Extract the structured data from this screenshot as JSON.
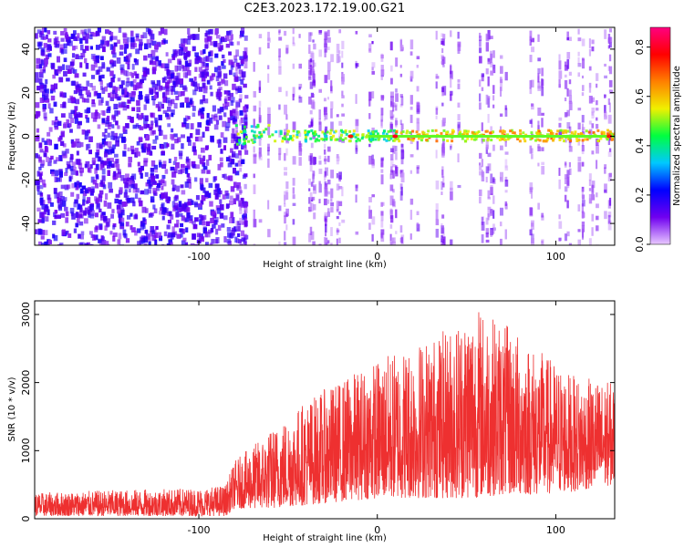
{
  "title": "C2E3.2023.172.19.00.G21",
  "chart_data": [
    {
      "type": "heatmap",
      "xlabel": "Height of straight line (km)",
      "ylabel": "Frequency (Hz)",
      "xlim": [
        -192,
        133
      ],
      "ylim": [
        -50,
        50
      ],
      "xticks": [
        -100,
        0,
        100
      ],
      "yticks": [
        -40,
        -20,
        0,
        20,
        40
      ],
      "colorbar": {
        "label": "Normalized spectral amplitude",
        "range": [
          0.0,
          0.88
        ],
        "ticks": [
          "0.0",
          "0.2",
          "0.4",
          "0.6",
          "0.8"
        ],
        "tick_values": [
          0.0,
          0.2,
          0.4,
          0.6,
          0.8
        ],
        "colors": [
          "#e8c8ff",
          "#7000f0",
          "#0000ff",
          "#00c8ff",
          "#00ff40",
          "#f0f000",
          "#ff8000",
          "#ff0000",
          "#ff0080"
        ]
      },
      "features": {
        "broadband_noise_x_end": -80,
        "signal_freq_hz": 0,
        "signal_start_x": -80,
        "signal_band_halfwidth_hz": 3
      }
    },
    {
      "type": "line",
      "xlabel": "Height of straight line (km)",
      "ylabel": "SNR (10 * v/v)",
      "xlim": [
        -192,
        133
      ],
      "ylim": [
        0,
        3200
      ],
      "xticks": [
        -100,
        0,
        100
      ],
      "yticks": [
        0,
        1000,
        2000,
        3000
      ],
      "color": "#ee3030",
      "envelope": [
        {
          "x": -192,
          "lo": 40,
          "hi": 380
        },
        {
          "x": -150,
          "lo": 40,
          "hi": 420
        },
        {
          "x": -100,
          "lo": 40,
          "hi": 450
        },
        {
          "x": -85,
          "lo": 40,
          "hi": 500
        },
        {
          "x": -80,
          "lo": 150,
          "hi": 850
        },
        {
          "x": -60,
          "lo": 150,
          "hi": 1300
        },
        {
          "x": -40,
          "lo": 200,
          "hi": 1750
        },
        {
          "x": -20,
          "lo": 250,
          "hi": 2050
        },
        {
          "x": 0,
          "lo": 300,
          "hi": 2350
        },
        {
          "x": 20,
          "lo": 300,
          "hi": 2600
        },
        {
          "x": 40,
          "lo": 300,
          "hi": 2800
        },
        {
          "x": 52,
          "lo": 300,
          "hi": 3200
        },
        {
          "x": 70,
          "lo": 350,
          "hi": 2900
        },
        {
          "x": 90,
          "lo": 350,
          "hi": 2500
        },
        {
          "x": 110,
          "lo": 400,
          "hi": 2100
        },
        {
          "x": 133,
          "lo": 500,
          "hi": 2000
        }
      ]
    }
  ]
}
